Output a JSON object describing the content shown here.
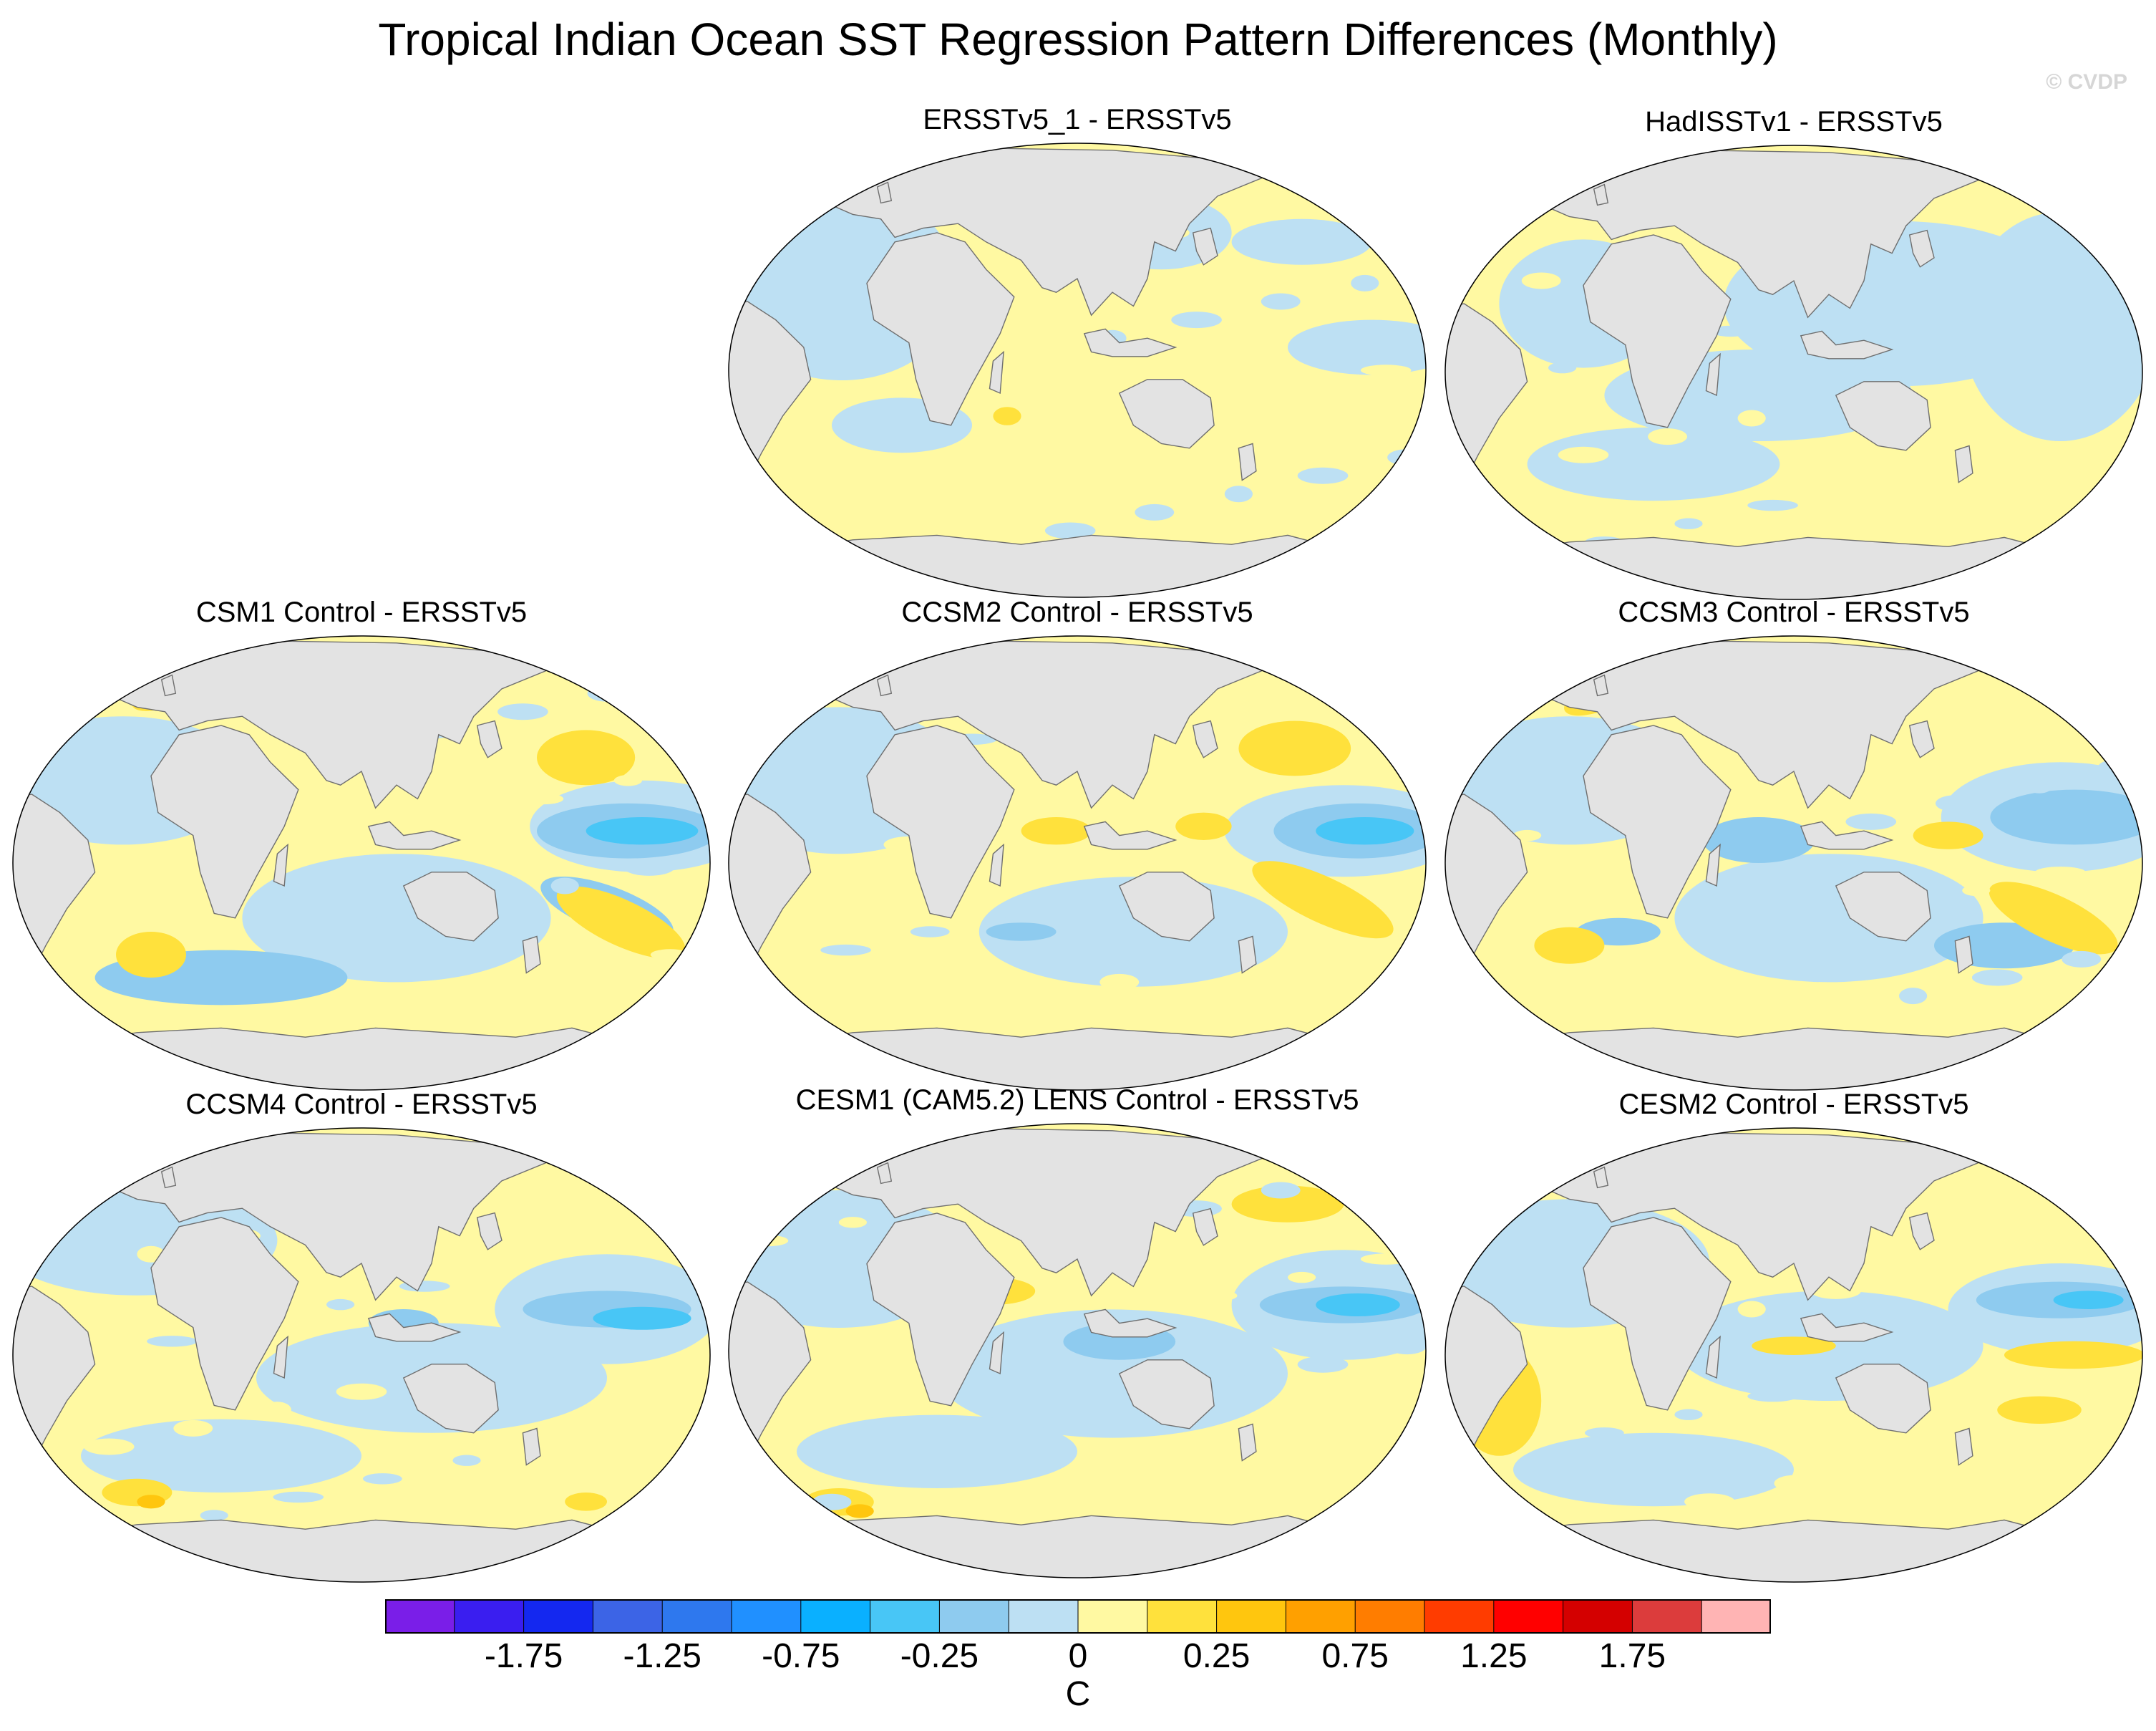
{
  "title": "Tropical Indian Ocean SST Regression Pattern Differences (Monthly)",
  "watermark": "© CVDP",
  "panels": [
    {
      "title": "ERSSTv5_1 - ERSSTv5"
    },
    {
      "title": "HadISSTv1 - ERSSTv5"
    },
    {
      "title": "CSM1 Control - ERSSTv5"
    },
    {
      "title": "CCSM2 Control - ERSSTv5"
    },
    {
      "title": "CCSM3 Control - ERSSTv5"
    },
    {
      "title": "CCSM4 Control - ERSSTv5"
    },
    {
      "title": "CESM1 (CAM5.2) LENS Control - ERSSTv5"
    },
    {
      "title": "CESM2 Control - ERSSTv5"
    }
  ],
  "colorbar": {
    "unit": "C",
    "colors": [
      "#7a1ee8",
      "#3a1ef0",
      "#1428f0",
      "#3c64e6",
      "#2e78ee",
      "#2090ff",
      "#0ab0ff",
      "#48c6f6",
      "#8ecbef",
      "#bde0f3",
      "#fff9a2",
      "#ffe13c",
      "#ffc60e",
      "#ffa000",
      "#ff7d00",
      "#ff3c00",
      "#ff0000",
      "#d40000",
      "#dc3c3c",
      "#ffb4b4"
    ],
    "labels": [
      "-1.75",
      "-1.25",
      "-0.75",
      "-0.25",
      "0",
      "0.25",
      "0.75",
      "1.25",
      "1.75"
    ]
  },
  "palette": {
    "land": "#e3e3e3",
    "neutral_pos": "#fff9a2",
    "neutral_neg": "#bde0f3",
    "mid_neg": "#8ecbef",
    "strong_neg": "#48c6f6",
    "mid_pos": "#ffe13c",
    "strong_pos": "#ffc60e"
  }
}
